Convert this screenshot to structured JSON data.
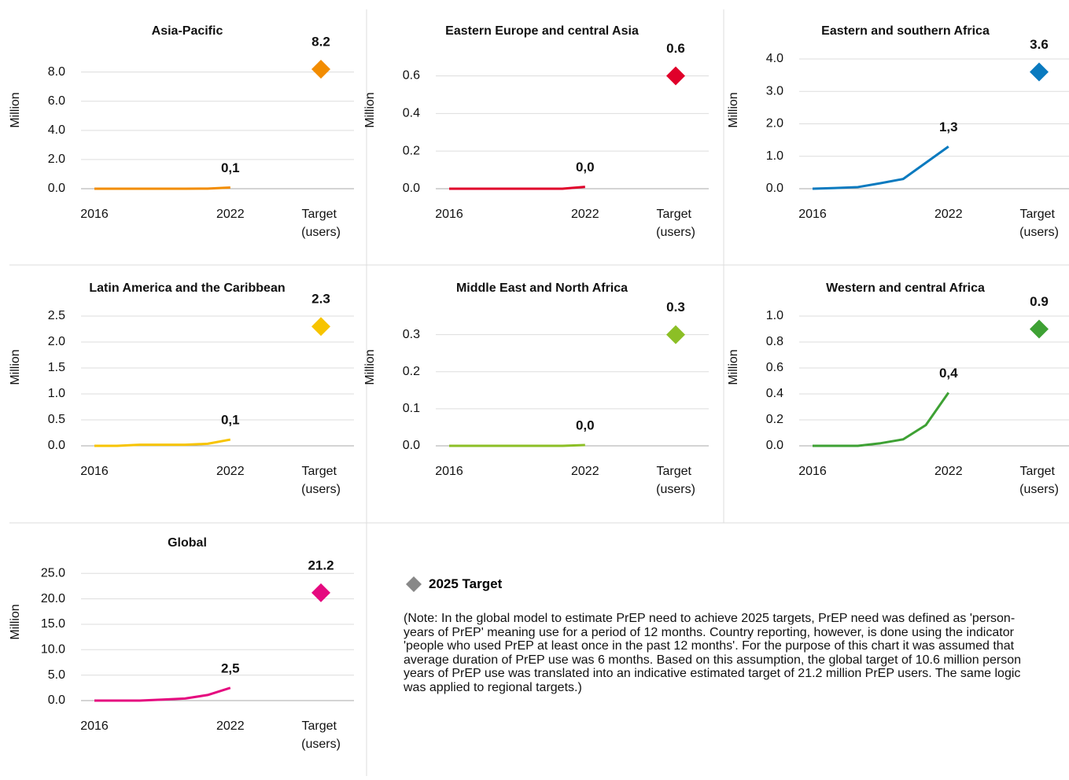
{
  "legend": {
    "name": "2025 Target",
    "color": "#888888"
  },
  "note": "(Note: In the global model to estimate PrEP need to achieve 2025 targets, PrEP need was defined as 'person-years of PrEP' meaning use for a period of 12 months. Country reporting, however, is done using the indicator 'people who used PrEP at least once in the past 12 months'. For the purpose of this chart it was assumed that average duration of PrEP use was 6 months. Based on this assumption, the global target of 10.6 million person years of PrEP use was translated into an indicative estimated target of 21.2 million PrEP users. The same logic was applied to regional targets.)",
  "chart_data": [
    {
      "type": "line",
      "title": "Asia-Pacific",
      "ylabel": "Million",
      "categories": [
        "2016",
        null,
        null,
        null,
        null,
        null,
        "2022",
        null,
        null,
        null,
        "Target (users)"
      ],
      "series": [
        {
          "color": "#f28c00",
          "values": [
            0,
            0,
            0,
            0,
            0,
            0.01,
            0.08,
            null,
            null,
            null,
            null
          ],
          "value_labels": [
            null,
            null,
            null,
            null,
            null,
            null,
            "0,1",
            null,
            null,
            null,
            null
          ]
        },
        {
          "color": "#f28c00",
          "values": [
            null,
            null,
            null,
            null,
            null,
            null,
            null,
            null,
            null,
            null,
            8.2
          ]
        }
      ],
      "ylim": [
        0,
        8.9
      ],
      "yticks": [
        {
          "value": 0,
          "label": "0.0"
        },
        {
          "value": 2,
          "label": "2.0"
        },
        {
          "value": 4,
          "label": "4.0"
        },
        {
          "value": 6,
          "label": "6.0"
        },
        {
          "value": 8,
          "label": "8.0"
        }
      ]
    },
    {
      "type": "line",
      "title": "Eastern Europe and central Asia",
      "ylabel": "Million",
      "categories": [
        "2016",
        null,
        null,
        null,
        null,
        null,
        "2022",
        null,
        null,
        null,
        "Target (users)"
      ],
      "series": [
        {
          "color": "#e0002a",
          "values": [
            0,
            0,
            0,
            0,
            0,
            0,
            0.01,
            null,
            null,
            null,
            null
          ],
          "value_labels": [
            null,
            null,
            null,
            null,
            null,
            null,
            "0,0",
            null,
            null,
            null,
            null
          ]
        },
        {
          "color": "#e0002a",
          "values": [
            null,
            null,
            null,
            null,
            null,
            null,
            null,
            null,
            null,
            null,
            0.6
          ]
        }
      ],
      "ylim": [
        0,
        0.69
      ],
      "yticks": [
        {
          "value": 0,
          "label": "0.0"
        },
        0.2,
        0.4,
        0.6
      ]
    },
    {
      "type": "line",
      "title": "Eastern and southern Africa",
      "ylabel": "Million",
      "categories": [
        "2016",
        null,
        null,
        null,
        null,
        null,
        "2022",
        null,
        null,
        null,
        "Target (users)"
      ],
      "series": [
        {
          "color": "#0a7abf",
          "values": [
            0,
            0.02,
            0.05,
            0.17,
            0.3,
            0.8,
            1.3,
            null,
            null,
            null,
            null
          ],
          "value_labels": [
            null,
            null,
            null,
            null,
            null,
            null,
            "1,3",
            null,
            null,
            null,
            null
          ]
        },
        {
          "color": "#0a7abf",
          "values": [
            null,
            null,
            null,
            null,
            null,
            null,
            null,
            null,
            null,
            null,
            3.6
          ]
        }
      ],
      "ylim": [
        0,
        4.0
      ],
      "yticks": [
        {
          "value": 0,
          "label": "0.0"
        },
        {
          "value": 1,
          "label": "1.0"
        },
        {
          "value": 2,
          "label": "2.0"
        },
        {
          "value": 3,
          "label": "3.0"
        },
        {
          "value": 4,
          "label": "4.0"
        }
      ]
    },
    {
      "type": "line",
      "title": "Latin America and the Caribbean",
      "ylabel": "Million",
      "categories": [
        "2016",
        null,
        null,
        null,
        null,
        null,
        "2022",
        null,
        null,
        null,
        "Target (users)"
      ],
      "series": [
        {
          "color": "#f7c400",
          "values": [
            0,
            0,
            0.02,
            0.02,
            0.02,
            0.04,
            0.12,
            null,
            null,
            null,
            null
          ],
          "value_labels": [
            null,
            null,
            null,
            null,
            null,
            null,
            "0,1",
            null,
            null,
            null,
            null
          ]
        },
        {
          "color": "#f7c400",
          "values": [
            null,
            null,
            null,
            null,
            null,
            null,
            null,
            null,
            null,
            null,
            2.3
          ]
        }
      ],
      "ylim": [
        0,
        2.5
      ],
      "yticks": [
        {
          "value": 0,
          "label": "0.0"
        },
        0.5,
        {
          "value": 1,
          "label": "1.0"
        },
        1.5,
        {
          "value": 2,
          "label": "2.0"
        },
        2.5
      ]
    },
    {
      "type": "line",
      "title": "Middle East and North Africa",
      "ylabel": "Million",
      "categories": [
        "2016",
        null,
        null,
        null,
        null,
        null,
        "2022",
        null,
        null,
        null,
        "Target (users)"
      ],
      "series": [
        {
          "color": "#8cbf26",
          "values": [
            0,
            0,
            0,
            0,
            0,
            0,
            0.002,
            null,
            null,
            null,
            null
          ],
          "value_labels": [
            null,
            null,
            null,
            null,
            null,
            null,
            "0,0",
            null,
            null,
            null,
            null
          ]
        },
        {
          "color": "#8cbf26",
          "values": [
            null,
            null,
            null,
            null,
            null,
            null,
            null,
            null,
            null,
            null,
            0.3
          ]
        }
      ],
      "ylim": [
        0,
        0.35
      ],
      "yticks": [
        {
          "value": 0,
          "label": "0.0"
        },
        0.1,
        0.2,
        0.3
      ]
    },
    {
      "type": "line",
      "title": "Western and central Africa",
      "ylabel": "Million",
      "categories": [
        "2016",
        null,
        null,
        null,
        null,
        null,
        "2022",
        null,
        null,
        null,
        "Target (users)"
      ],
      "series": [
        {
          "color": "#3ea134",
          "values": [
            0,
            0,
            0,
            0.02,
            0.05,
            0.16,
            0.41,
            null,
            null,
            null,
            null
          ],
          "value_labels": [
            null,
            null,
            null,
            null,
            null,
            null,
            "0,4",
            null,
            null,
            null,
            null
          ]
        },
        {
          "color": "#3ea134",
          "values": [
            null,
            null,
            null,
            null,
            null,
            null,
            null,
            null,
            null,
            null,
            0.9
          ]
        }
      ],
      "ylim": [
        0,
        1.0
      ],
      "yticks": [
        {
          "value": 0,
          "label": "0.0"
        },
        0.2,
        0.4,
        0.6,
        0.8,
        {
          "value": 1,
          "label": "1.0"
        }
      ]
    },
    {
      "type": "line",
      "title": "Global",
      "ylabel": "Million",
      "categories": [
        "2016",
        null,
        null,
        null,
        null,
        null,
        "2022",
        null,
        null,
        null,
        "Target (users)"
      ],
      "series": [
        {
          "color": "#e5097f",
          "values": [
            0,
            0,
            0,
            0.2,
            0.4,
            1.1,
            2.5,
            null,
            null,
            null,
            null
          ],
          "value_labels": [
            null,
            null,
            null,
            null,
            null,
            null,
            "2,5",
            null,
            null,
            null,
            null
          ]
        },
        {
          "color": "#e5097f",
          "values": [
            null,
            null,
            null,
            null,
            null,
            null,
            null,
            null,
            null,
            null,
            21.2
          ]
        }
      ],
      "ylim": [
        0,
        25.5
      ],
      "yticks": [
        {
          "value": 0,
          "label": "0.0"
        },
        {
          "value": 5,
          "label": "5.0"
        },
        {
          "value": 10,
          "label": "10.0"
        },
        {
          "value": 15,
          "label": "15.0"
        },
        {
          "value": 20,
          "label": "20.0"
        },
        {
          "value": 25,
          "label": "25.0"
        }
      ]
    }
  ]
}
